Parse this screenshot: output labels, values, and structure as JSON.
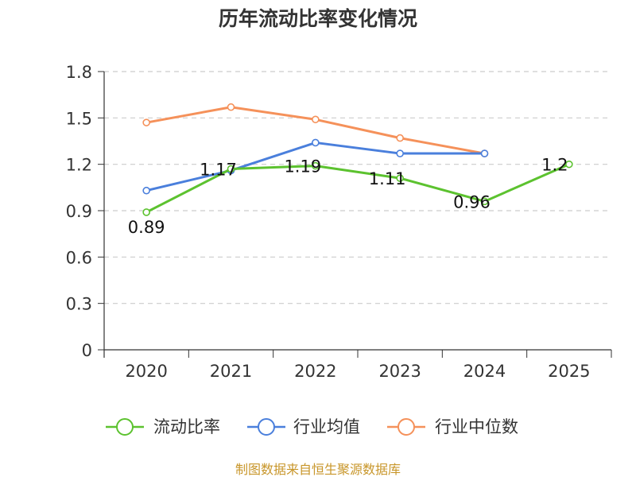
{
  "chart_data": {
    "type": "line",
    "title": "历年流动比率变化情况",
    "categories": [
      "2020",
      "2021",
      "2022",
      "2023",
      "2024",
      "2025"
    ],
    "ylim": [
      0,
      1.8
    ],
    "yticks": [
      "0",
      "0.3",
      "0.6",
      "0.9",
      "1.2",
      "1.5",
      "1.8"
    ],
    "grid": true,
    "legend_position": "bottom",
    "series": [
      {
        "name": "流动比率",
        "color": "#5cc22f",
        "values": [
          0.89,
          1.17,
          1.19,
          1.11,
          0.96,
          1.2
        ],
        "labels": [
          "0.89",
          "1.17",
          "1.19",
          "1.11",
          "0.96",
          "1.2"
        ]
      },
      {
        "name": "行业均值",
        "color": "#4a7fdc",
        "values": [
          1.03,
          1.16,
          1.34,
          1.27,
          1.27,
          null
        ]
      },
      {
        "name": "行业中位数",
        "color": "#f5915a",
        "values": [
          1.47,
          1.57,
          1.49,
          1.37,
          1.27,
          null
        ]
      }
    ],
    "source": "制图数据来自恒生聚源数据库",
    "source_color": "#c8962a"
  }
}
